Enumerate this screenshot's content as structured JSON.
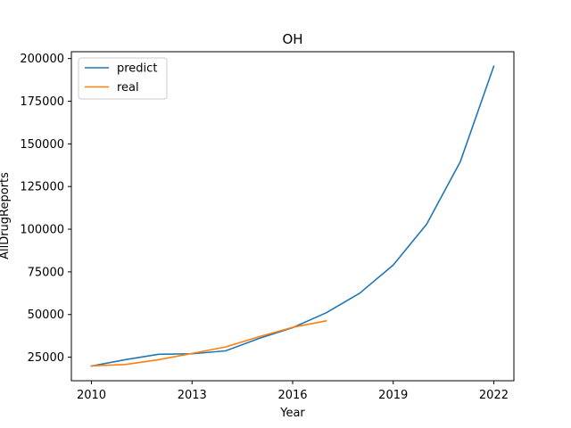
{
  "chart_data": {
    "type": "line",
    "title": "OH",
    "xlabel": "Year",
    "ylabel": "AllDrugReports",
    "xlim": [
      2009.4,
      2022.6
    ],
    "ylim": [
      11200,
      204000
    ],
    "xticks": [
      2010,
      2013,
      2016,
      2019,
      2022
    ],
    "yticks": [
      25000,
      50000,
      75000,
      100000,
      125000,
      150000,
      175000,
      200000
    ],
    "grid": false,
    "legend_position": "top-left",
    "series": [
      {
        "name": "predict",
        "color": "#1f77b4",
        "x": [
          2010,
          2011,
          2012,
          2013,
          2014,
          2015,
          2016,
          2017,
          2018,
          2019,
          2020,
          2021,
          2022
        ],
        "y": [
          19800,
          23500,
          26700,
          27000,
          28700,
          36000,
          42300,
          51000,
          62500,
          79000,
          103000,
          139500,
          195500
        ]
      },
      {
        "name": "real",
        "color": "#ff7f0e",
        "x": [
          2010,
          2011,
          2012,
          2013,
          2014,
          2015,
          2016,
          2017
        ],
        "y": [
          19900,
          20700,
          23500,
          27200,
          31000,
          37000,
          42500,
          46300
        ]
      }
    ]
  }
}
